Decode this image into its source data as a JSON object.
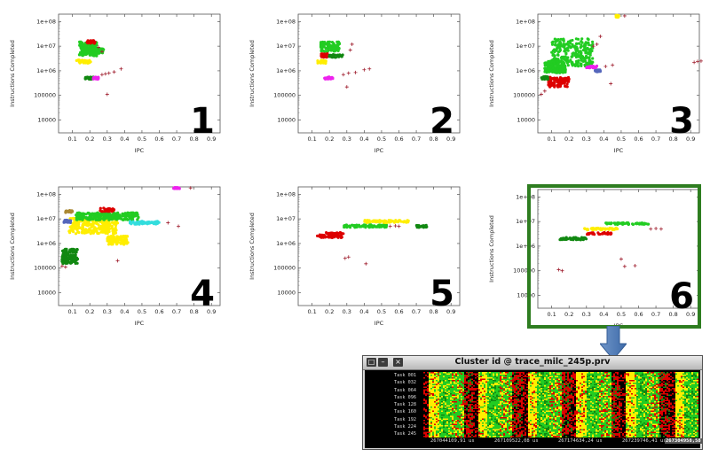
{
  "axes": {
    "ylabel": "Instructions Completed",
    "xlabel": "IPC",
    "ytick_labels": [
      "1e+08",
      "1e+07",
      "1e+06",
      "100000",
      "10000"
    ],
    "xtick_labels": [
      "0.1",
      "0.2",
      "0.3",
      "0.4",
      "0.5",
      "0.6",
      "0.7",
      "0.8",
      "0.9"
    ]
  },
  "chart_data": [
    {
      "type": "scatter",
      "panel_label": "1",
      "xlabel": "IPC",
      "ylabel": "Instructions Completed",
      "xlim": [
        0.02,
        0.95
      ],
      "ylim": [
        3000,
        200000000
      ],
      "yscale": "log",
      "grid": false,
      "clusters": [
        {
          "color": "#22cc22",
          "x": [
            0.14,
            0.24
          ],
          "y": [
            4000000,
            15000000
          ]
        },
        {
          "color": "#22cc22",
          "x": [
            0.16,
            0.28
          ],
          "y": [
            5000000,
            8000000
          ]
        },
        {
          "color": "#ffee00",
          "x": [
            0.12,
            0.21
          ],
          "y": [
            2000000,
            2800000
          ]
        },
        {
          "color": "#118811",
          "x": [
            0.17,
            0.22
          ],
          "y": [
            450000,
            560000
          ]
        },
        {
          "color": "#ee22ee",
          "x": [
            0.22,
            0.25
          ],
          "y": [
            450000,
            560000
          ]
        },
        {
          "color": "#dd0000",
          "x": [
            0.18,
            0.23
          ],
          "y": [
            13000000,
            17000000
          ]
        }
      ],
      "noise": [
        [
          0.27,
          700000
        ],
        [
          0.29,
          750000
        ],
        [
          0.31,
          800000
        ],
        [
          0.34,
          900000
        ],
        [
          0.38,
          1200000
        ],
        [
          0.25,
          9000000
        ],
        [
          0.27,
          6000000
        ],
        [
          0.3,
          110000
        ]
      ]
    },
    {
      "type": "scatter",
      "panel_label": "2",
      "xlabel": "IPC",
      "ylabel": "Instructions Completed",
      "xlim": [
        0.02,
        0.95
      ],
      "ylim": [
        3000,
        200000000
      ],
      "yscale": "log",
      "grid": false,
      "clusters": [
        {
          "color": "#22cc22",
          "x": [
            0.15,
            0.26
          ],
          "y": [
            6000000,
            15000000
          ]
        },
        {
          "color": "#dd0000",
          "x": [
            0.15,
            0.19
          ],
          "y": [
            3500000,
            5000000
          ]
        },
        {
          "color": "#118811",
          "x": [
            0.2,
            0.28
          ],
          "y": [
            3500000,
            4600000
          ]
        },
        {
          "color": "#ffee00",
          "x": [
            0.13,
            0.18
          ],
          "y": [
            2000000,
            2700000
          ]
        },
        {
          "color": "#ee22ee",
          "x": [
            0.17,
            0.22
          ],
          "y": [
            450000,
            560000
          ]
        }
      ],
      "noise": [
        [
          0.28,
          700000
        ],
        [
          0.31,
          800000
        ],
        [
          0.35,
          850000
        ],
        [
          0.4,
          1100000
        ],
        [
          0.43,
          1200000
        ],
        [
          0.3,
          220000
        ],
        [
          0.32,
          7000000
        ],
        [
          0.33,
          12000000
        ]
      ]
    },
    {
      "type": "scatter",
      "panel_label": "3",
      "xlabel": "IPC",
      "ylabel": "Instructions Completed",
      "xlim": [
        0.02,
        0.95
      ],
      "ylim": [
        3000,
        200000000
      ],
      "yscale": "log",
      "grid": false,
      "clusters": [
        {
          "color": "#22cc22",
          "x": [
            0.1,
            0.34
          ],
          "y": [
            1500000,
            20000000
          ]
        },
        {
          "color": "#22cc22",
          "x": [
            0.06,
            0.18
          ],
          "y": [
            800000,
            2500000
          ]
        },
        {
          "color": "#dd0000",
          "x": [
            0.08,
            0.2
          ],
          "y": [
            220000,
            550000
          ]
        },
        {
          "color": "#118811",
          "x": [
            0.04,
            0.08
          ],
          "y": [
            450000,
            600000
          ]
        },
        {
          "color": "#ee22ee",
          "x": [
            0.3,
            0.36
          ],
          "y": [
            1300000,
            1600000
          ]
        },
        {
          "color": "#5566bb",
          "x": [
            0.35,
            0.38
          ],
          "y": [
            900000,
            1100000
          ]
        },
        {
          "color": "#ffee00",
          "x": [
            0.47,
            0.49
          ],
          "y": [
            150000000,
            180000000
          ]
        }
      ],
      "noise": [
        [
          0.52,
          170000000
        ],
        [
          0.34,
          10000000
        ],
        [
          0.36,
          12000000
        ],
        [
          0.38,
          25000000
        ],
        [
          0.41,
          1500000
        ],
        [
          0.45,
          1700000
        ],
        [
          0.92,
          2200000
        ],
        [
          0.94,
          2400000
        ],
        [
          0.96,
          2500000
        ],
        [
          0.04,
          110000
        ],
        [
          0.44,
          300000
        ],
        [
          0.06,
          150000
        ]
      ]
    },
    {
      "type": "scatter",
      "panel_label": "4",
      "xlabel": "IPC",
      "ylabel": "Instructions Completed",
      "xlim": [
        0.02,
        0.95
      ],
      "ylim": [
        3000,
        200000000
      ],
      "yscale": "log",
      "grid": false,
      "clusters": [
        {
          "color": "#ffee00",
          "x": [
            0.08,
            0.36
          ],
          "y": [
            2500000,
            11000000
          ]
        },
        {
          "color": "#ffee00",
          "x": [
            0.3,
            0.42
          ],
          "y": [
            900000,
            2000000
          ]
        },
        {
          "color": "#22cc22",
          "x": [
            0.12,
            0.48
          ],
          "y": [
            9000000,
            18000000
          ]
        },
        {
          "color": "#33dddd",
          "x": [
            0.43,
            0.6
          ],
          "y": [
            6000000,
            8000000
          ]
        },
        {
          "color": "#dd0000",
          "x": [
            0.26,
            0.34
          ],
          "y": [
            20000000,
            28000000
          ]
        },
        {
          "color": "#118811",
          "x": [
            0.04,
            0.13
          ],
          "y": [
            150000,
            600000
          ]
        },
        {
          "color": "#aa8833",
          "x": [
            0.06,
            0.1
          ],
          "y": [
            18000000,
            23000000
          ]
        },
        {
          "color": "#5566bb",
          "x": [
            0.05,
            0.09
          ],
          "y": [
            7000000,
            9000000
          ]
        },
        {
          "color": "#ee22ee",
          "x": [
            0.68,
            0.72
          ],
          "y": [
            170000000,
            190000000
          ]
        }
      ],
      "noise": [
        [
          0.04,
          120000
        ],
        [
          0.06,
          110000
        ],
        [
          0.71,
          5000000
        ],
        [
          0.36,
          200000
        ],
        [
          0.65,
          7000000
        ],
        [
          0.78,
          180000000
        ]
      ]
    },
    {
      "type": "scatter",
      "panel_label": "5",
      "xlabel": "IPC",
      "ylabel": "Instructions Completed",
      "xlim": [
        0.02,
        0.95
      ],
      "ylim": [
        3000,
        200000000
      ],
      "yscale": "log",
      "grid": false,
      "clusters": [
        {
          "color": "#22cc22",
          "x": [
            0.28,
            0.53
          ],
          "y": [
            4500000,
            5800000
          ]
        },
        {
          "color": "#ffee00",
          "x": [
            0.4,
            0.66
          ],
          "y": [
            7000000,
            8800000
          ]
        },
        {
          "color": "#dd0000",
          "x": [
            0.13,
            0.28
          ],
          "y": [
            1700000,
            2300000
          ]
        },
        {
          "color": "#dd0000",
          "x": [
            0.18,
            0.28
          ],
          "y": [
            2300000,
            2800000
          ]
        },
        {
          "color": "#118811",
          "x": [
            0.7,
            0.76
          ],
          "y": [
            4500000,
            5500000
          ]
        }
      ],
      "noise": [
        [
          0.29,
          250000
        ],
        [
          0.31,
          280000
        ],
        [
          0.41,
          150000
        ],
        [
          0.55,
          5000000
        ],
        [
          0.58,
          5200000
        ],
        [
          0.6,
          5000000
        ]
      ]
    },
    {
      "type": "scatter",
      "panel_label": "6",
      "xlabel": "IPC",
      "ylabel": "Instructions Completed",
      "xlim": [
        0.02,
        0.95
      ],
      "ylim": [
        3000,
        200000000
      ],
      "yscale": "log",
      "grid": false,
      "clusters": [
        {
          "color": "#22cc22",
          "x": [
            0.41,
            0.66
          ],
          "y": [
            7500000,
            9000000
          ]
        },
        {
          "color": "#ffee00",
          "x": [
            0.28,
            0.48
          ],
          "y": [
            4500000,
            5500000
          ]
        },
        {
          "color": "#dd0000",
          "x": [
            0.3,
            0.45
          ],
          "y": [
            3000000,
            3600000
          ]
        },
        {
          "color": "#118811",
          "x": [
            0.13,
            0.3
          ],
          "y": [
            1800000,
            2300000
          ]
        }
      ],
      "noise": [
        [
          0.14,
          110000
        ],
        [
          0.16,
          100000
        ],
        [
          0.5,
          300000
        ],
        [
          0.52,
          150000
        ],
        [
          0.58,
          160000
        ],
        [
          0.67,
          5000000
        ],
        [
          0.7,
          5200000
        ],
        [
          0.73,
          5000000
        ]
      ]
    }
  ],
  "window": {
    "title": "Cluster id @ trace_milc_245p.prv",
    "buttons": [
      "□",
      "–",
      "×"
    ],
    "tasks": [
      "Task 001",
      "Task 032",
      "Task 064",
      "Task 096",
      "Task 128",
      "Task 160",
      "Task 192",
      "Task 224",
      "Task 245"
    ],
    "times": [
      "267044109,91 us",
      "267109522,08 us",
      "267174634,24 us",
      "267239746,41 us",
      "267304958,58"
    ],
    "phase_colors": [
      "#ffee00",
      "#22cc22",
      "#dd0000",
      "#118811",
      "#000000"
    ]
  }
}
